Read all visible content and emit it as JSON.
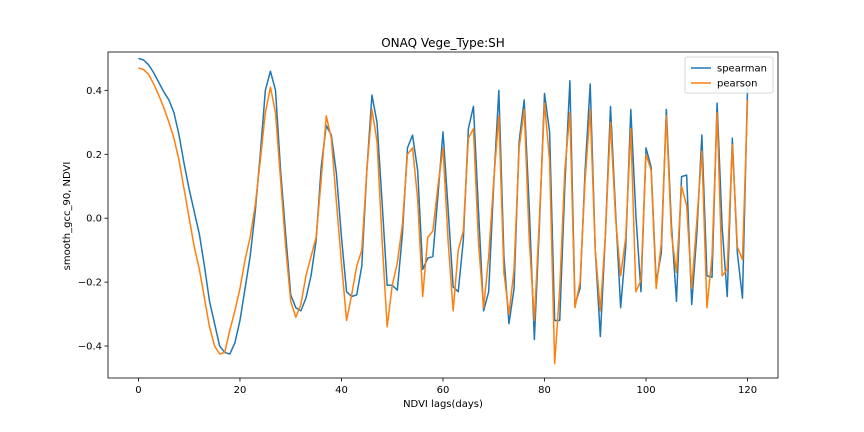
{
  "chart_data": {
    "type": "line",
    "title": "ONAQ Vege_Type:SH",
    "xlabel": "NDVI lags(days)",
    "ylabel": "smooth_gcc_90, NDVI",
    "xlim": [
      -6,
      126
    ],
    "ylim": [
      -0.5,
      0.52
    ],
    "xticks": [
      0,
      20,
      40,
      60,
      80,
      100,
      120
    ],
    "yticks": [
      -0.4,
      -0.2,
      0.0,
      0.2,
      0.4
    ],
    "xtick_labels": [
      "0",
      "20",
      "40",
      "60",
      "80",
      "100",
      "120"
    ],
    "ytick_labels": [
      "−0.4",
      "−0.2",
      "0.0",
      "0.2",
      "0.4"
    ],
    "grid": false,
    "legend_position": "top-right",
    "legend": [
      "spearman",
      "pearson"
    ],
    "x": [
      0,
      1,
      2,
      3,
      4,
      5,
      6,
      7,
      8,
      9,
      10,
      11,
      12,
      13,
      14,
      15,
      16,
      17,
      18,
      19,
      20,
      21,
      22,
      23,
      24,
      25,
      26,
      27,
      28,
      29,
      30,
      31,
      32,
      33,
      34,
      35,
      36,
      37,
      38,
      39,
      40,
      41,
      42,
      43,
      44,
      45,
      46,
      47,
      48,
      49,
      50,
      51,
      52,
      53,
      54,
      55,
      56,
      57,
      58,
      59,
      60,
      61,
      62,
      63,
      64,
      65,
      66,
      67,
      68,
      69,
      70,
      71,
      72,
      73,
      74,
      75,
      76,
      77,
      78,
      79,
      80,
      81,
      82,
      83,
      84,
      85,
      86,
      87,
      88,
      89,
      90,
      91,
      92,
      93,
      94,
      95,
      96,
      97,
      98,
      99,
      100,
      101,
      102,
      103,
      104,
      105,
      106,
      107,
      108,
      109,
      110,
      111,
      112,
      113,
      114,
      115,
      116,
      117,
      118,
      119,
      120
    ],
    "series": [
      {
        "name": "spearman",
        "color": "#1f77b4",
        "values": [
          0.5,
          0.495,
          0.48,
          0.455,
          0.425,
          0.395,
          0.37,
          0.33,
          0.26,
          0.17,
          0.09,
          0.02,
          -0.05,
          -0.15,
          -0.26,
          -0.33,
          -0.4,
          -0.42,
          -0.425,
          -0.39,
          -0.32,
          -0.22,
          -0.12,
          0.02,
          0.2,
          0.4,
          0.46,
          0.4,
          0.15,
          -0.05,
          -0.24,
          -0.28,
          -0.29,
          -0.25,
          -0.18,
          -0.07,
          0.16,
          0.29,
          0.26,
          0.14,
          -0.06,
          -0.23,
          -0.245,
          -0.24,
          -0.15,
          0.15,
          0.385,
          0.3,
          0.05,
          -0.21,
          -0.21,
          -0.225,
          -0.05,
          0.22,
          0.26,
          0.15,
          -0.16,
          -0.125,
          -0.12,
          0.07,
          0.27,
          0.03,
          -0.215,
          -0.23,
          -0.07,
          0.28,
          0.35,
          0.02,
          -0.29,
          -0.23,
          0.11,
          0.4,
          -0.12,
          -0.33,
          -0.22,
          0.24,
          0.37,
          0.03,
          -0.38,
          -0.02,
          0.39,
          0.27,
          -0.32,
          -0.32,
          0.1,
          0.43,
          -0.27,
          -0.22,
          0.15,
          0.42,
          -0.1,
          -0.37,
          -0.05,
          0.35,
          0.02,
          -0.28,
          -0.09,
          0.34,
          0.01,
          -0.23,
          0.22,
          0.16,
          -0.2,
          -0.11,
          0.34,
          -0.02,
          -0.26,
          0.13,
          0.135,
          -0.27,
          -0.05,
          0.26,
          -0.18,
          -0.185,
          0.36,
          -0.03,
          -0.245,
          0.25,
          -0.11,
          -0.25,
          0.41
        ]
      },
      {
        "name": "pearson",
        "color": "#ff7f0e",
        "values": [
          0.47,
          0.465,
          0.45,
          0.42,
          0.385,
          0.345,
          0.3,
          0.25,
          0.18,
          0.09,
          0.0,
          -0.09,
          -0.16,
          -0.25,
          -0.34,
          -0.4,
          -0.425,
          -0.42,
          -0.35,
          -0.29,
          -0.22,
          -0.13,
          -0.06,
          0.04,
          0.18,
          0.33,
          0.41,
          0.33,
          0.12,
          -0.09,
          -0.26,
          -0.31,
          -0.27,
          -0.18,
          -0.12,
          -0.06,
          0.12,
          0.32,
          0.25,
          0.05,
          -0.14,
          -0.32,
          -0.24,
          -0.15,
          -0.1,
          0.15,
          0.34,
          0.24,
          -0.07,
          -0.34,
          -0.21,
          -0.14,
          -0.02,
          0.2,
          0.22,
          0.06,
          -0.245,
          -0.06,
          -0.04,
          0.1,
          0.22,
          -0.07,
          -0.29,
          -0.1,
          -0.04,
          0.25,
          0.28,
          -0.08,
          -0.28,
          -0.12,
          0.12,
          0.32,
          -0.17,
          -0.3,
          -0.16,
          0.22,
          0.34,
          -0.07,
          -0.32,
          0.0,
          0.36,
          0.18,
          -0.455,
          -0.22,
          0.15,
          0.33,
          -0.28,
          -0.2,
          0.12,
          0.34,
          -0.1,
          -0.29,
          -0.05,
          0.3,
          0.0,
          -0.18,
          -0.06,
          0.28,
          -0.23,
          -0.195,
          0.2,
          0.15,
          -0.22,
          -0.08,
          0.32,
          -0.05,
          -0.17,
          0.1,
          0.04,
          -0.22,
          -0.01,
          0.21,
          -0.28,
          -0.12,
          0.33,
          -0.18,
          -0.16,
          0.23,
          -0.09,
          -0.13,
          0.37
        ]
      }
    ]
  }
}
